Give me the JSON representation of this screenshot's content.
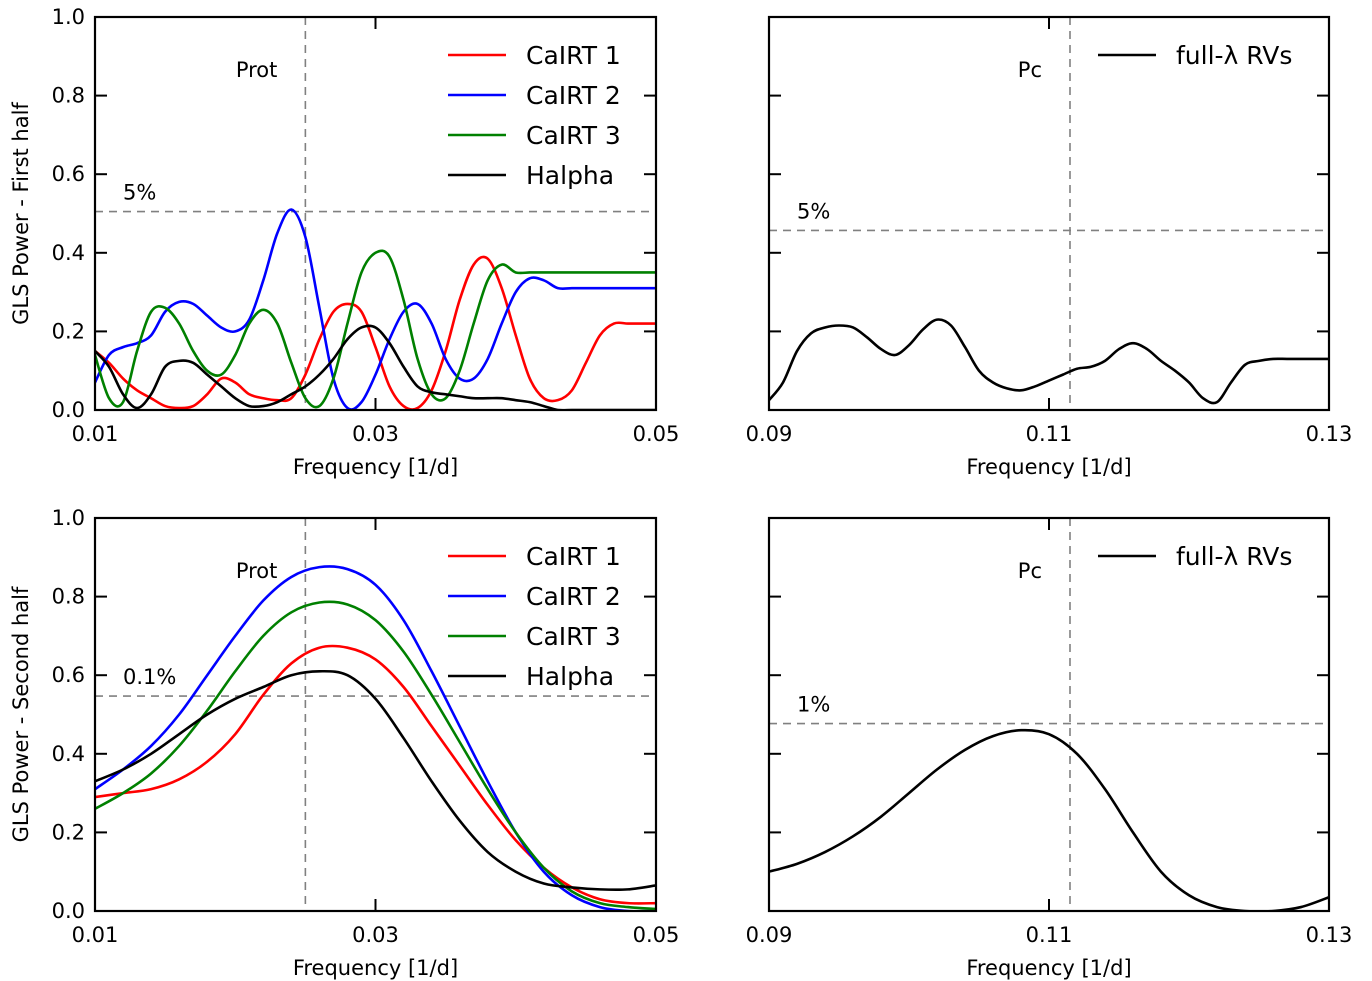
{
  "chart_data": [
    {
      "type": "line",
      "panel": "top-left",
      "xlabel": "Frequency [1/d]",
      "ylabel": "GLS Power - First half",
      "xlim": [
        0.01,
        0.05
      ],
      "ylim": [
        0.0,
        1.0
      ],
      "xticks": [
        "0.01",
        "0.03",
        "0.05"
      ],
      "yticks": [
        "0.0",
        "0.2",
        "0.4",
        "0.6",
        "0.8",
        "1.0"
      ],
      "vline": {
        "x": 0.025,
        "label": "Prot"
      },
      "hline": {
        "y": 0.505,
        "label": "5%"
      },
      "legend": "top-right",
      "series": [
        {
          "name": "CaIRT 1",
          "color": "#ff0000",
          "x": [
            0.01,
            0.011,
            0.012,
            0.013,
            0.014,
            0.015,
            0.016,
            0.017,
            0.018,
            0.019,
            0.02,
            0.021,
            0.022,
            0.023,
            0.024,
            0.025,
            0.026,
            0.027,
            0.028,
            0.029,
            0.03,
            0.031,
            0.032,
            0.033,
            0.034,
            0.035,
            0.036,
            0.037,
            0.038,
            0.039,
            0.04,
            0.041,
            0.042,
            0.043,
            0.044,
            0.045,
            0.046,
            0.047,
            0.048,
            0.049,
            0.05
          ],
          "y": [
            0.15,
            0.12,
            0.08,
            0.05,
            0.03,
            0.01,
            0.005,
            0.01,
            0.04,
            0.08,
            0.07,
            0.04,
            0.03,
            0.025,
            0.03,
            0.09,
            0.18,
            0.25,
            0.27,
            0.25,
            0.16,
            0.06,
            0.01,
            0.005,
            0.05,
            0.15,
            0.28,
            0.37,
            0.385,
            0.31,
            0.19,
            0.08,
            0.03,
            0.025,
            0.05,
            0.12,
            0.19,
            0.22,
            0.22,
            0.22,
            0.22
          ]
        },
        {
          "name": "CaIRT 2",
          "color": "#0000ff",
          "x": [
            0.01,
            0.011,
            0.012,
            0.013,
            0.014,
            0.015,
            0.016,
            0.017,
            0.018,
            0.019,
            0.02,
            0.021,
            0.022,
            0.023,
            0.024,
            0.025,
            0.026,
            0.027,
            0.028,
            0.029,
            0.03,
            0.031,
            0.032,
            0.033,
            0.034,
            0.035,
            0.036,
            0.037,
            0.038,
            0.039,
            0.04,
            0.041,
            0.042,
            0.043,
            0.044,
            0.045,
            0.046,
            0.047,
            0.048,
            0.049,
            0.05
          ],
          "y": [
            0.07,
            0.14,
            0.16,
            0.17,
            0.19,
            0.25,
            0.275,
            0.27,
            0.24,
            0.21,
            0.2,
            0.23,
            0.33,
            0.45,
            0.51,
            0.44,
            0.26,
            0.08,
            0.005,
            0.02,
            0.09,
            0.18,
            0.25,
            0.27,
            0.22,
            0.13,
            0.08,
            0.08,
            0.13,
            0.22,
            0.3,
            0.335,
            0.33,
            0.31,
            0.31,
            0.31,
            0.31,
            0.31,
            0.31,
            0.31,
            0.31
          ]
        },
        {
          "name": "CaIRT 3",
          "color": "#008000",
          "x": [
            0.01,
            0.011,
            0.012,
            0.013,
            0.014,
            0.015,
            0.016,
            0.017,
            0.018,
            0.019,
            0.02,
            0.021,
            0.022,
            0.023,
            0.024,
            0.025,
            0.026,
            0.027,
            0.028,
            0.029,
            0.03,
            0.031,
            0.032,
            0.033,
            0.034,
            0.035,
            0.036,
            0.037,
            0.038,
            0.039,
            0.04,
            0.041,
            0.042,
            0.043,
            0.044,
            0.045,
            0.046,
            0.047,
            0.048,
            0.049,
            0.05
          ],
          "y": [
            0.14,
            0.03,
            0.02,
            0.15,
            0.25,
            0.26,
            0.22,
            0.15,
            0.1,
            0.09,
            0.14,
            0.22,
            0.255,
            0.22,
            0.12,
            0.03,
            0.01,
            0.08,
            0.22,
            0.35,
            0.4,
            0.39,
            0.28,
            0.13,
            0.04,
            0.03,
            0.1,
            0.22,
            0.33,
            0.37,
            0.35,
            0.35,
            0.35,
            0.35,
            0.35,
            0.35,
            0.35,
            0.35,
            0.35,
            0.35,
            0.35
          ]
        },
        {
          "name": "Halpha",
          "color": "#000000",
          "x": [
            0.01,
            0.011,
            0.012,
            0.013,
            0.014,
            0.015,
            0.016,
            0.017,
            0.018,
            0.019,
            0.02,
            0.021,
            0.022,
            0.023,
            0.024,
            0.025,
            0.026,
            0.027,
            0.028,
            0.029,
            0.03,
            0.031,
            0.032,
            0.033,
            0.034,
            0.035,
            0.036,
            0.037,
            0.038,
            0.039,
            0.04,
            0.041,
            0.042,
            0.043,
            0.044,
            0.045,
            0.046,
            0.047,
            0.048,
            0.049,
            0.05
          ],
          "y": [
            0.15,
            0.11,
            0.04,
            0.005,
            0.04,
            0.11,
            0.125,
            0.12,
            0.09,
            0.06,
            0.03,
            0.01,
            0.01,
            0.02,
            0.04,
            0.06,
            0.09,
            0.13,
            0.18,
            0.21,
            0.21,
            0.17,
            0.11,
            0.06,
            0.045,
            0.04,
            0.035,
            0.03,
            0.03,
            0.03,
            0.025,
            0.02,
            0.01,
            0.0,
            0.0,
            0.0,
            0.0,
            0.0,
            0.0,
            0.0,
            0.0
          ]
        }
      ]
    },
    {
      "type": "line",
      "panel": "top-right",
      "xlabel": "Frequency [1/d]",
      "ylabel": "",
      "xlim": [
        0.09,
        0.13
      ],
      "ylim": [
        0.0,
        1.0
      ],
      "xticks": [
        "0.09",
        "0.11",
        "0.13"
      ],
      "yticks": [],
      "vline": {
        "x": 0.1115,
        "label": "Pc"
      },
      "hline": {
        "y": 0.457,
        "label": "5%"
      },
      "legend": "top-right",
      "series": [
        {
          "name": "full-λ RVs",
          "color": "#000000",
          "x": [
            0.09,
            0.091,
            0.092,
            0.093,
            0.094,
            0.095,
            0.096,
            0.097,
            0.098,
            0.099,
            0.1,
            0.101,
            0.102,
            0.103,
            0.104,
            0.105,
            0.106,
            0.107,
            0.108,
            0.109,
            0.11,
            0.111,
            0.112,
            0.113,
            0.114,
            0.115,
            0.116,
            0.117,
            0.118,
            0.119,
            0.12,
            0.121,
            0.122,
            0.123,
            0.124,
            0.125,
            0.126,
            0.127,
            0.128,
            0.129,
            0.13
          ],
          "y": [
            0.025,
            0.07,
            0.15,
            0.195,
            0.21,
            0.215,
            0.21,
            0.185,
            0.155,
            0.14,
            0.165,
            0.205,
            0.23,
            0.215,
            0.16,
            0.1,
            0.07,
            0.055,
            0.05,
            0.06,
            0.075,
            0.09,
            0.105,
            0.11,
            0.125,
            0.155,
            0.17,
            0.155,
            0.125,
            0.1,
            0.07,
            0.03,
            0.02,
            0.07,
            0.115,
            0.125,
            0.13,
            0.13,
            0.13,
            0.13,
            0.13
          ]
        }
      ]
    },
    {
      "type": "line",
      "panel": "bottom-left",
      "xlabel": "Frequency [1/d]",
      "ylabel": "GLS Power - Second half",
      "xlim": [
        0.01,
        0.05
      ],
      "ylim": [
        0.0,
        1.0
      ],
      "xticks": [
        "0.01",
        "0.03",
        "0.05"
      ],
      "yticks": [
        "0.0",
        "0.2",
        "0.4",
        "0.6",
        "0.8",
        "1.0"
      ],
      "vline": {
        "x": 0.025,
        "label": "Prot"
      },
      "hline": {
        "y": 0.547,
        "label": "0.1%"
      },
      "legend": "top-right",
      "series": [
        {
          "name": "CaIRT 1",
          "color": "#ff0000",
          "x": [
            0.01,
            0.012,
            0.014,
            0.016,
            0.018,
            0.02,
            0.022,
            0.024,
            0.026,
            0.028,
            0.03,
            0.032,
            0.034,
            0.036,
            0.038,
            0.04,
            0.042,
            0.044,
            0.046,
            0.048,
            0.05
          ],
          "y": [
            0.29,
            0.3,
            0.31,
            0.335,
            0.38,
            0.45,
            0.55,
            0.63,
            0.67,
            0.67,
            0.64,
            0.57,
            0.47,
            0.37,
            0.27,
            0.18,
            0.11,
            0.06,
            0.03,
            0.02,
            0.02
          ]
        },
        {
          "name": "CaIRT 2",
          "color": "#0000ff",
          "x": [
            0.01,
            0.012,
            0.014,
            0.016,
            0.018,
            0.02,
            0.022,
            0.024,
            0.026,
            0.028,
            0.03,
            0.032,
            0.034,
            0.036,
            0.038,
            0.04,
            0.042,
            0.044,
            0.046,
            0.048,
            0.05
          ],
          "y": [
            0.31,
            0.36,
            0.42,
            0.5,
            0.6,
            0.7,
            0.79,
            0.85,
            0.875,
            0.87,
            0.83,
            0.74,
            0.61,
            0.47,
            0.33,
            0.2,
            0.1,
            0.04,
            0.01,
            0.0,
            0.0
          ]
        },
        {
          "name": "CaIRT 3",
          "color": "#008000",
          "x": [
            0.01,
            0.012,
            0.014,
            0.016,
            0.018,
            0.02,
            0.022,
            0.024,
            0.026,
            0.028,
            0.03,
            0.032,
            0.034,
            0.036,
            0.038,
            0.04,
            0.042,
            0.044,
            0.046,
            0.048,
            0.05
          ],
          "y": [
            0.26,
            0.3,
            0.35,
            0.42,
            0.51,
            0.61,
            0.7,
            0.76,
            0.785,
            0.78,
            0.74,
            0.66,
            0.55,
            0.43,
            0.31,
            0.2,
            0.11,
            0.05,
            0.02,
            0.01,
            0.005
          ]
        },
        {
          "name": "Halpha",
          "color": "#000000",
          "x": [
            0.01,
            0.012,
            0.014,
            0.016,
            0.018,
            0.02,
            0.022,
            0.024,
            0.026,
            0.028,
            0.03,
            0.032,
            0.034,
            0.036,
            0.038,
            0.04,
            0.042,
            0.044,
            0.046,
            0.048,
            0.05
          ],
          "y": [
            0.33,
            0.36,
            0.4,
            0.45,
            0.5,
            0.54,
            0.57,
            0.6,
            0.61,
            0.6,
            0.54,
            0.44,
            0.33,
            0.23,
            0.15,
            0.1,
            0.07,
            0.06,
            0.055,
            0.055,
            0.065
          ]
        }
      ]
    },
    {
      "type": "line",
      "panel": "bottom-right",
      "xlabel": "Frequency [1/d]",
      "ylabel": "",
      "xlim": [
        0.09,
        0.13
      ],
      "ylim": [
        0.0,
        1.0
      ],
      "xticks": [
        "0.09",
        "0.11",
        "0.13"
      ],
      "yticks": [],
      "vline": {
        "x": 0.1115,
        "label": "Pc"
      },
      "hline": {
        "y": 0.477,
        "label": "1%"
      },
      "legend": "top-right",
      "series": [
        {
          "name": "full-λ RVs",
          "color": "#000000",
          "x": [
            0.09,
            0.092,
            0.094,
            0.096,
            0.098,
            0.1,
            0.102,
            0.104,
            0.106,
            0.108,
            0.11,
            0.112,
            0.114,
            0.116,
            0.118,
            0.12,
            0.122,
            0.124,
            0.126,
            0.128,
            0.13
          ],
          "y": [
            0.1,
            0.12,
            0.15,
            0.19,
            0.24,
            0.3,
            0.36,
            0.41,
            0.445,
            0.46,
            0.45,
            0.4,
            0.31,
            0.2,
            0.1,
            0.04,
            0.01,
            0.0,
            0.0,
            0.01,
            0.035
          ]
        }
      ]
    }
  ]
}
